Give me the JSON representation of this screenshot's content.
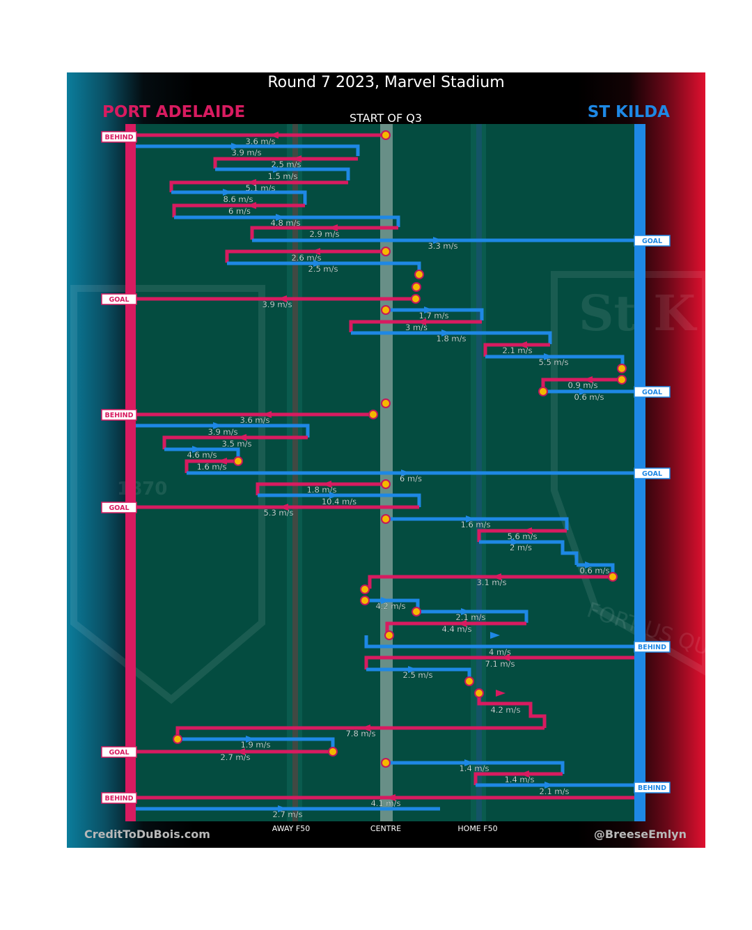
{
  "title": "Round 7 2023, Marvel Stadium",
  "period_label": "START OF Q3",
  "teams": {
    "home": {
      "name": "PORT ADELAIDE",
      "color": "#d81b60",
      "end_side": "left"
    },
    "away": {
      "name": "ST KILDA",
      "color": "#1e88e5",
      "end_side": "right"
    }
  },
  "colors": {
    "field": "#044c40",
    "stoppage_marker": "#f5b800",
    "score_box_bg": "#ffffff"
  },
  "credits": {
    "left": "CreditToDuBois.com",
    "right": "@BreeseEmlyn"
  },
  "background_logos": [
    "port-adelaide-logo",
    "st-kilda-logo"
  ],
  "watermark_text": {
    "left_crest": "1870",
    "right_crest_top": "St K",
    "right_crest_motto": "FORTIUS QU"
  },
  "chart_data": {
    "type": "line",
    "description": "Ball movement chains, one row per kick/handball sequence",
    "x_axis": {
      "ticks": [
        "AWAY F50",
        "CENTRE",
        "HOME F50"
      ],
      "range": [
        "Port Adelaide goal",
        "St Kilda goal"
      ]
    },
    "chains": [
      {
        "team": "PORT ADELAIDE",
        "speed": "3.6 m/s",
        "from": "CENTRE",
        "result": "BEHIND"
      },
      {
        "team": "ST KILDA",
        "speed": "3.9 m/s"
      },
      {
        "team": "PORT ADELAIDE",
        "speed": "2.5 m/s"
      },
      {
        "team": "ST KILDA",
        "speed": "1.5 m/s"
      },
      {
        "team": "PORT ADELAIDE",
        "speed": "5.1 m/s"
      },
      {
        "team": "ST KILDA",
        "speed": "8.6 m/s"
      },
      {
        "team": "PORT ADELAIDE",
        "speed": "6 m/s"
      },
      {
        "team": "ST KILDA",
        "speed": "4.8 m/s"
      },
      {
        "team": "PORT ADELAIDE",
        "speed": "2.9 m/s"
      },
      {
        "team": "ST KILDA",
        "speed": "3.3 m/s",
        "result": "GOAL"
      },
      {
        "team": "PORT ADELAIDE",
        "speed": "2.6 m/s",
        "from": "CENTRE"
      },
      {
        "team": "ST KILDA",
        "speed": "2.5 m/s"
      },
      {
        "team": "PORT ADELAIDE",
        "speed": "3.9 m/s",
        "result": "GOAL"
      },
      {
        "team": "ST KILDA",
        "speed": "1.7 m/s",
        "from": "CENTRE"
      },
      {
        "team": "PORT ADELAIDE",
        "speed": "3 m/s"
      },
      {
        "team": "ST KILDA",
        "speed": "1.8 m/s"
      },
      {
        "team": "PORT ADELAIDE",
        "speed": "2.1 m/s"
      },
      {
        "team": "ST KILDA",
        "speed": "5.5 m/s"
      },
      {
        "team": "PORT ADELAIDE",
        "speed": "0.9 m/s"
      },
      {
        "team": "ST KILDA",
        "speed": "0.6 m/s",
        "result": "GOAL"
      },
      {
        "team": "PORT ADELAIDE",
        "speed": "3.6 m/s",
        "from": "CENTRE",
        "result": "BEHIND"
      },
      {
        "team": "ST KILDA",
        "speed": "3.9 m/s"
      },
      {
        "team": "PORT ADELAIDE",
        "speed": "3.5 m/s"
      },
      {
        "team": "ST KILDA",
        "speed": "4.6 m/s"
      },
      {
        "team": "PORT ADELAIDE",
        "speed": "1.6 m/s"
      },
      {
        "team": "ST KILDA",
        "speed": "6 m/s",
        "result": "GOAL"
      },
      {
        "team": "PORT ADELAIDE",
        "speed": "1.8 m/s",
        "from": "CENTRE"
      },
      {
        "team": "ST KILDA",
        "speed": "10.4 m/s"
      },
      {
        "team": "PORT ADELAIDE",
        "speed": "5.3 m/s",
        "result": "GOAL"
      },
      {
        "team": "ST KILDA",
        "speed": "1.6 m/s",
        "from": "CENTRE"
      },
      {
        "team": "PORT ADELAIDE",
        "speed": "5.6 m/s"
      },
      {
        "team": "ST KILDA",
        "speed": "2 m/s"
      },
      {
        "team": "ST KILDA",
        "speed": "0.6 m/s"
      },
      {
        "team": "PORT ADELAIDE",
        "speed": "3.1 m/s"
      },
      {
        "team": "ST KILDA",
        "speed": "4.2 m/s"
      },
      {
        "team": "ST KILDA",
        "speed": "2.1 m/s"
      },
      {
        "team": "PORT ADELAIDE",
        "speed": "4.4 m/s"
      },
      {
        "team": "ST KILDA",
        "speed": "4 m/s",
        "result": "BEHIND"
      },
      {
        "team": "PORT ADELAIDE",
        "speed": "7.1 m/s"
      },
      {
        "team": "ST KILDA",
        "speed": "2.5 m/s"
      },
      {
        "team": "PORT ADELAIDE",
        "speed": "4.2 m/s"
      },
      {
        "team": "PORT ADELAIDE",
        "speed": "7.8 m/s"
      },
      {
        "team": "ST KILDA",
        "speed": "1.9 m/s"
      },
      {
        "team": "PORT ADELAIDE",
        "speed": "2.7 m/s",
        "result": "GOAL"
      },
      {
        "team": "ST KILDA",
        "speed": "1.4 m/s",
        "from": "CENTRE"
      },
      {
        "team": "PORT ADELAIDE",
        "speed": "1.4 m/s"
      },
      {
        "team": "ST KILDA",
        "speed": "2.1 m/s",
        "result": "BEHIND"
      },
      {
        "team": "PORT ADELAIDE",
        "speed": "4.1 m/s",
        "result": "BEHIND"
      },
      {
        "team": "ST KILDA",
        "speed": "2.7 m/s"
      }
    ]
  }
}
